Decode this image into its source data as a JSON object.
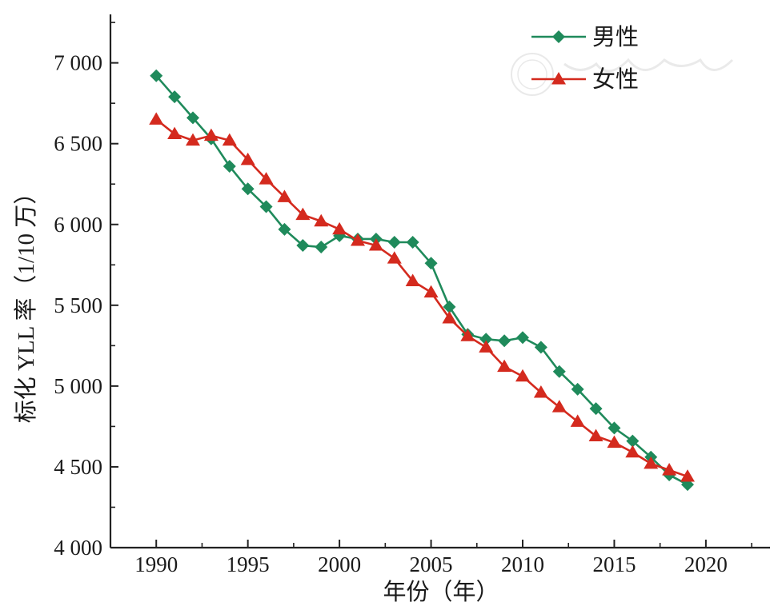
{
  "chart_data": {
    "type": "line",
    "xlabel": "年份（年）",
    "ylabel": "标化 YLL 率（1/10 万）",
    "xlim": [
      1987.5,
      2023.5
    ],
    "ylim": [
      4000,
      7300
    ],
    "x_ticks": [
      1990,
      1995,
      2000,
      2005,
      2010,
      2015,
      2020
    ],
    "x_tick_labels": [
      "1990",
      "1995",
      "2000",
      "2005",
      "2010",
      "2015",
      "2020"
    ],
    "y_ticks": [
      4000,
      4500,
      5000,
      5500,
      6000,
      6500,
      7000
    ],
    "y_tick_labels": [
      "4 000",
      "4 500",
      "5 000",
      "5 500",
      "6 000",
      "6 500",
      "7 000"
    ],
    "grid": false,
    "legend_position": "top-right",
    "x": [
      1990,
      1991,
      1992,
      1993,
      1994,
      1995,
      1996,
      1997,
      1998,
      1999,
      2000,
      2001,
      2002,
      2003,
      2004,
      2005,
      2006,
      2007,
      2008,
      2009,
      2010,
      2011,
      2012,
      2013,
      2014,
      2015,
      2016,
      2017,
      2018,
      2019
    ],
    "series": [
      {
        "name": "男性",
        "color": "#1f8a5b",
        "marker": "diamond",
        "values": [
          6920,
          6790,
          6660,
          6530,
          6360,
          6220,
          6110,
          5970,
          5870,
          5860,
          5930,
          5910,
          5910,
          5890,
          5890,
          5760,
          5490,
          5320,
          5290,
          5280,
          5300,
          5240,
          5090,
          4980,
          4860,
          4740,
          4660,
          4560,
          4450,
          4390
        ]
      },
      {
        "name": "女性",
        "color": "#d42a1e",
        "marker": "triangle",
        "values": [
          6650,
          6560,
          6520,
          6550,
          6520,
          6400,
          6280,
          6170,
          6060,
          6020,
          5970,
          5900,
          5870,
          5790,
          5650,
          5580,
          5420,
          5310,
          5240,
          5120,
          5060,
          4960,
          4870,
          4780,
          4690,
          4650,
          4590,
          4520,
          4480,
          4440
        ]
      }
    ]
  }
}
